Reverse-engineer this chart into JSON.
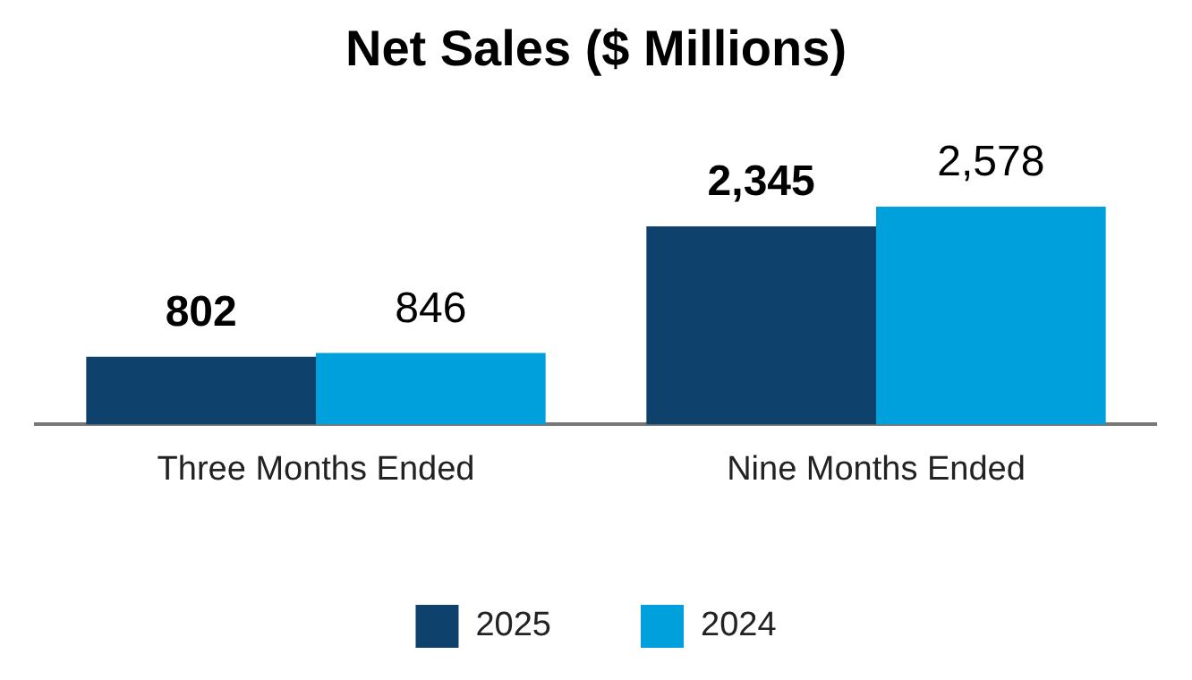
{
  "chart_data": {
    "type": "bar",
    "title": "Net Sales ($ Millions)",
    "categories": [
      "Three Months Ended",
      "Nine Months Ended"
    ],
    "series": [
      {
        "name": "2025",
        "color": "#0e416b",
        "values": [
          802,
          2345
        ],
        "value_labels": [
          "802",
          "2,345"
        ]
      },
      {
        "name": "2024",
        "color": "#00a0dc",
        "values": [
          846,
          2578
        ],
        "value_labels": [
          "846",
          "2,578"
        ]
      }
    ],
    "legend": "bottom",
    "grid": false
  }
}
